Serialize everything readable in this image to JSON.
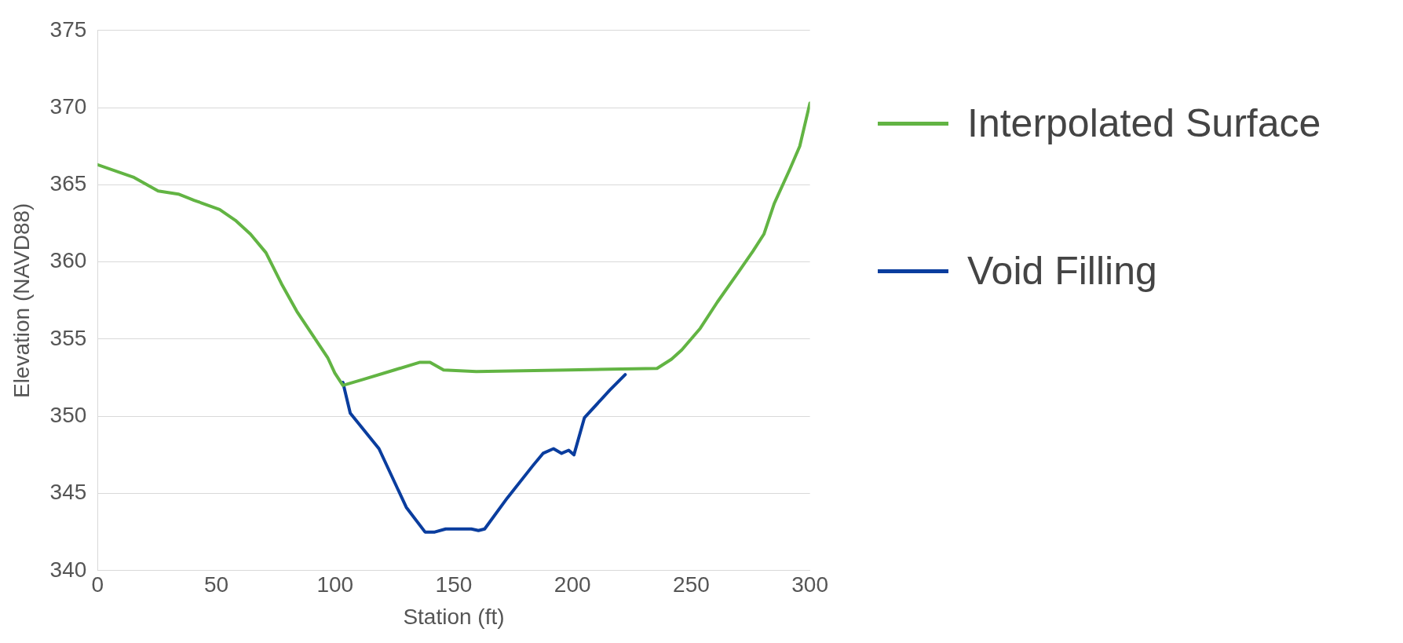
{
  "chart_data": {
    "type": "line",
    "xlabel": "Station (ft)",
    "ylabel": "Elevation (NAVD88)",
    "series": [
      {
        "name": "Interpolated Surface",
        "color": "#62b443",
        "x": [
          0,
          15,
          25.5,
          34,
          40.6,
          51.4,
          58,
          64.4,
          70.9,
          77.4,
          83.9,
          90.4,
          96.9,
          99.9,
          103.3,
          112,
          125,
          135.8,
          140,
          145.7,
          159.5,
          198.4,
          235.6,
          241.7,
          246,
          253.8,
          261,
          269.7,
          276,
          280.6,
          285,
          291.5,
          295.7,
          300
        ],
        "values": [
          366.3,
          365.5,
          364.6,
          364.4,
          364.0,
          363.4,
          362.7,
          361.8,
          360.6,
          358.6,
          356.8,
          355.3,
          353.8,
          352.8,
          352.0,
          352.4,
          353.0,
          353.5,
          353.5,
          353.0,
          352.9,
          353.0,
          353.1,
          353.7,
          354.3,
          355.7,
          357.4,
          359.3,
          360.7,
          361.8,
          363.8,
          366.0,
          367.5,
          370.3
        ]
      },
      {
        "name": "Void Filling",
        "color": "#0a3d9e",
        "x": [
          103.3,
          106.4,
          118.5,
          130,
          137.9,
          142,
          146.6,
          157.4,
          160.4,
          163,
          172.5,
          183.3,
          187.6,
          192,
          195.4,
          198.4,
          200.6,
          205,
          215.7,
          222.2
        ],
        "values": [
          352.2,
          350.2,
          347.9,
          344.1,
          342.5,
          342.5,
          342.7,
          342.7,
          342.6,
          342.7,
          344.7,
          346.8,
          347.6,
          347.9,
          347.6,
          347.8,
          347.5,
          349.9,
          351.7,
          352.7
        ]
      }
    ],
    "xlim": [
      0,
      300
    ],
    "xticks": [
      0,
      50,
      100,
      150,
      200,
      250,
      300
    ],
    "ylim": [
      340,
      375
    ],
    "yticks": [
      340,
      345,
      350,
      355,
      360,
      365,
      370,
      375
    ],
    "grid": "y",
    "legend": "right",
    "marker": "none",
    "line_style": "solid"
  }
}
